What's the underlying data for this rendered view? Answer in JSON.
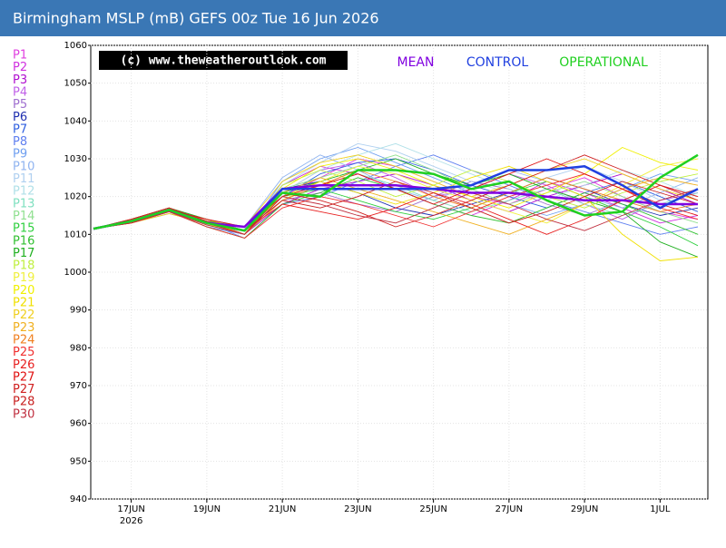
{
  "chart_data": {
    "type": "line",
    "title": "Birmingham MSLP (mB) GEFS 00z Tue 16 Jun 2026",
    "watermark": "(c) www.theweatheroutlook.com",
    "year_label": "2026",
    "categories": [
      null,
      "17JUN",
      null,
      "19JUN",
      null,
      "21JUN",
      null,
      "23JUN",
      null,
      "25JUN",
      null,
      "27JUN",
      null,
      "29JUN",
      null,
      "1JUL",
      null
    ],
    "ylim": [
      940,
      1060
    ],
    "yticks": [
      940,
      950,
      960,
      970,
      980,
      990,
      1000,
      1010,
      1020,
      1030,
      1040,
      1050,
      1060
    ],
    "grid": true,
    "series": [
      {
        "name": "P1",
        "color": "#e040e0",
        "values": [
          1011.5,
          1013,
          1016,
          1014,
          1010,
          1020,
          1025,
          1030,
          1028,
          1024,
          1020,
          1018,
          1022,
          1025,
          1020,
          1016,
          1014
        ]
      },
      {
        "name": "P2",
        "color": "#d030e0",
        "values": [
          1011.5,
          1014,
          1017,
          1013,
          1011,
          1023,
          1028,
          1026,
          1022,
          1018,
          1015,
          1019,
          1024,
          1021,
          1017,
          1013,
          1015
        ]
      },
      {
        "name": "P3",
        "color": "#b010d0",
        "values": [
          1011.5,
          1013.5,
          1016,
          1012,
          1010,
          1018,
          1022,
          1024,
          1026,
          1023,
          1019,
          1016,
          1020,
          1023,
          1026,
          1022,
          1018
        ]
      },
      {
        "name": "P4",
        "color": "#c060e8",
        "values": [
          1011.5,
          1013,
          1015.5,
          1013,
          1012,
          1021,
          1027,
          1029,
          1025,
          1020,
          1022,
          1026,
          1023,
          1018,
          1014,
          1019,
          1021
        ]
      },
      {
        "name": "P5",
        "color": "#a070d0",
        "values": [
          1011.5,
          1014,
          1017,
          1014,
          1011,
          1019,
          1021,
          1018,
          1016,
          1020,
          1024,
          1022,
          1018,
          1015,
          1019,
          1023,
          1020
        ]
      },
      {
        "name": "P6",
        "color": "#2030b0",
        "values": [
          1011.5,
          1013.5,
          1016.5,
          1013,
          1010,
          1022,
          1024,
          1021,
          1017,
          1015,
          1018,
          1021,
          1025,
          1022,
          1018,
          1015,
          1017
        ]
      },
      {
        "name": "P7",
        "color": "#3060e0",
        "values": [
          1011.5,
          1013,
          1016,
          1013.5,
          1011,
          1020,
          1026,
          1029,
          1030,
          1027,
          1023,
          1020,
          1017,
          1021,
          1024,
          1020,
          1016
        ]
      },
      {
        "name": "P8",
        "color": "#6080f0",
        "values": [
          1011.5,
          1014,
          1017,
          1013,
          1009,
          1018,
          1020,
          1024,
          1028,
          1031,
          1027,
          1023,
          1019,
          1016,
          1013,
          1010,
          1012
        ]
      },
      {
        "name": "P9",
        "color": "#6f9ff0",
        "values": [
          1011.5,
          1013.5,
          1016,
          1012,
          1010,
          1024,
          1030,
          1033,
          1029,
          1025,
          1021,
          1018,
          1015,
          1018,
          1022,
          1026,
          1024
        ]
      },
      {
        "name": "P10",
        "color": "#90b4f0",
        "values": [
          1011.5,
          1013,
          1016.5,
          1014,
          1012,
          1025,
          1031,
          1027,
          1022,
          1019,
          1023,
          1027,
          1024,
          1020,
          1017,
          1021,
          1025
        ]
      },
      {
        "name": "P11",
        "color": "#b0d0f0",
        "values": [
          1011.5,
          1014,
          1017,
          1013,
          1011,
          1023,
          1029,
          1034,
          1032,
          1028,
          1024,
          1021,
          1025,
          1028,
          1024,
          1019,
          1022
        ]
      },
      {
        "name": "P12",
        "color": "#b0e0e8",
        "values": [
          1011.5,
          1013.5,
          1016,
          1012.5,
          1010,
          1021,
          1027,
          1031,
          1034,
          1030,
          1026,
          1022,
          1019,
          1023,
          1027,
          1024,
          1020
        ]
      },
      {
        "name": "P13",
        "color": "#80e0c0",
        "values": [
          1011.5,
          1013,
          1015.5,
          1013,
          1011,
          1019,
          1023,
          1026,
          1023,
          1019,
          1016,
          1019,
          1022,
          1018,
          1015,
          1018,
          1021
        ]
      },
      {
        "name": "P14",
        "color": "#90e090",
        "values": [
          1011.5,
          1014,
          1016.5,
          1013,
          1010,
          1022,
          1025,
          1028,
          1031,
          1027,
          1022,
          1018,
          1021,
          1024,
          1020,
          1016,
          1013
        ]
      },
      {
        "name": "P15",
        "color": "#30d040",
        "values": [
          1011.5,
          1013.5,
          1016,
          1013.5,
          1012,
          1020,
          1022,
          1019,
          1016,
          1014,
          1017,
          1021,
          1024,
          1020,
          1016,
          1012,
          1007
        ]
      },
      {
        "name": "P16",
        "color": "#30c030",
        "values": [
          1011.5,
          1013,
          1016,
          1012,
          1009,
          1018,
          1021,
          1025,
          1022,
          1018,
          1015,
          1013,
          1017,
          1021,
          1018,
          1014,
          1010
        ]
      },
      {
        "name": "P17",
        "color": "#20b020",
        "values": [
          1011.5,
          1014,
          1017,
          1014,
          1011,
          1021,
          1024,
          1027,
          1030,
          1026,
          1023,
          1026,
          1022,
          1019,
          1016,
          1008,
          1004
        ]
      },
      {
        "name": "P18",
        "color": "#c0f040",
        "values": [
          1011.5,
          1013.5,
          1016.5,
          1013,
          1010,
          1023,
          1027,
          1024,
          1020,
          1023,
          1027,
          1024,
          1020,
          1017,
          1021,
          1024,
          1026
        ]
      },
      {
        "name": "P19",
        "color": "#f0f040",
        "values": [
          1011.5,
          1013,
          1016,
          1013,
          1011,
          1019,
          1024,
          1028,
          1026,
          1022,
          1019,
          1016,
          1013,
          1018,
          1023,
          1028,
          1030
        ]
      },
      {
        "name": "P20",
        "color": "#f0f000",
        "values": [
          1011.5,
          1014,
          1017,
          1013.5,
          1010,
          1022,
          1028,
          1030,
          1027,
          1023,
          1020,
          1017,
          1021,
          1026,
          1033,
          1029,
          1027
        ]
      },
      {
        "name": "P21",
        "color": "#f0e000",
        "values": [
          1011.5,
          1013.5,
          1016,
          1012.5,
          1011,
          1020,
          1024,
          1021,
          1018,
          1021,
          1025,
          1028,
          1024,
          1020,
          1010,
          1003,
          1004
        ]
      },
      {
        "name": "P22",
        "color": "#f0d020",
        "values": [
          1011.5,
          1013,
          1015.5,
          1013,
          1012,
          1024,
          1029,
          1031,
          1028,
          1024,
          1020,
          1023,
          1027,
          1030,
          1026,
          1022,
          1019
        ]
      },
      {
        "name": "P23",
        "color": "#f0b020",
        "values": [
          1011.5,
          1014,
          1016.5,
          1014,
          1011,
          1021,
          1025,
          1022,
          1019,
          1016,
          1013,
          1010,
          1014,
          1018,
          1022,
          1025,
          1023
        ]
      },
      {
        "name": "P24",
        "color": "#f08020",
        "values": [
          1011.5,
          1013.5,
          1016,
          1013,
          1010,
          1019,
          1023,
          1027,
          1024,
          1020,
          1017,
          1021,
          1025,
          1022,
          1019,
          1016,
          1018
        ]
      },
      {
        "name": "P25",
        "color": "#f03030",
        "values": [
          1011.5,
          1013,
          1016,
          1012,
          1009,
          1017,
          1020,
          1018,
          1015,
          1012,
          1016,
          1020,
          1023,
          1026,
          1022,
          1017,
          1014
        ]
      },
      {
        "name": "P26",
        "color": "#e82020",
        "values": [
          1011.5,
          1014,
          1017,
          1013,
          1011,
          1018,
          1016,
          1014,
          1017,
          1021,
          1018,
          1014,
          1010,
          1014,
          1019,
          1023,
          1020
        ]
      },
      {
        "name": "P27",
        "color": "#e01010",
        "values": [
          1011.5,
          1013.5,
          1016.5,
          1014,
          1012,
          1020,
          1023,
          1026,
          1022,
          1018,
          1022,
          1026,
          1030,
          1026,
          1022,
          1018,
          1015
        ]
      },
      {
        "name": "P27",
        "color": "#d02020",
        "values": [
          1011.5,
          1013,
          1016,
          1013,
          1010,
          1021,
          1019,
          1016,
          1012,
          1015,
          1019,
          1023,
          1027,
          1031,
          1027,
          1023,
          1019
        ]
      },
      {
        "name": "P28",
        "color": "#c82020",
        "values": [
          1011.5,
          1014,
          1017,
          1013.5,
          1011,
          1019,
          1017,
          1020,
          1024,
          1021,
          1017,
          1013,
          1016,
          1020,
          1024,
          1021,
          1018
        ]
      },
      {
        "name": "P30",
        "color": "#c03040",
        "values": [
          1011.5,
          1013.5,
          1016,
          1012.5,
          1010,
          1020,
          1018,
          1015,
          1013,
          1017,
          1021,
          1018,
          1014,
          1011,
          1015,
          1019,
          1022
        ]
      },
      {
        "name": "MEAN",
        "color": "#8000e0",
        "values": [
          1011.5,
          1013.5,
          1016.5,
          1013,
          1012,
          1022,
          1023,
          1023,
          1023,
          1022,
          1021,
          1021,
          1020,
          1019,
          1019,
          1018,
          1018
        ]
      },
      {
        "name": "CONTROL",
        "color": "#2040e0",
        "values": [
          1011.5,
          1013.5,
          1016.5,
          1013,
          1011,
          1022,
          1022,
          1022,
          1022,
          1022,
          1023,
          1027,
          1027,
          1028,
          1023,
          1017,
          1022
        ]
      },
      {
        "name": "OPERATIONAL",
        "color": "#20d020",
        "values": [
          1011.5,
          1013.5,
          1016.5,
          1013,
          1011,
          1021,
          1020,
          1027,
          1027,
          1026,
          1022,
          1024,
          1019,
          1015,
          1016,
          1025,
          1031
        ]
      }
    ]
  }
}
